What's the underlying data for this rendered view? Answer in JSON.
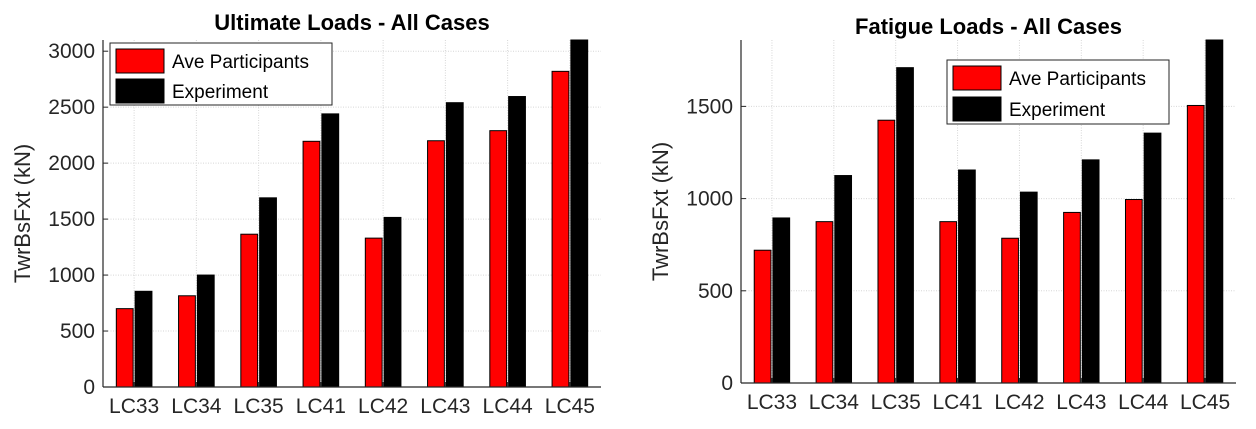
{
  "chart_data": [
    {
      "type": "bar",
      "title": "Ultimate Loads - All Cases",
      "xlabel": "",
      "ylabel": "TwrBsFxt (kN)",
      "categories": [
        "LC33",
        "LC34",
        "LC35",
        "LC41",
        "LC42",
        "LC43",
        "LC44",
        "LC45"
      ],
      "ylim": [
        0,
        3100
      ],
      "yticks": [
        0,
        500,
        1000,
        1500,
        2000,
        2500,
        3000
      ],
      "grid": true,
      "legend": "top-left",
      "series": [
        {
          "name": "Ave Participants",
          "color": "#ff0000",
          "values": [
            700,
            815,
            1365,
            2195,
            1330,
            2200,
            2290,
            2820
          ]
        },
        {
          "name": "Experiment",
          "color": "#000000",
          "values": [
            855,
            1000,
            1690,
            2440,
            1515,
            2540,
            2595,
            3100
          ]
        }
      ]
    },
    {
      "type": "bar",
      "title": "Fatigue Loads - All Cases",
      "xlabel": "",
      "ylabel": "TwrBsFxt (kN)",
      "categories": [
        "LC33",
        "LC34",
        "LC35",
        "LC41",
        "LC42",
        "LC43",
        "LC44",
        "LC45"
      ],
      "ylim": [
        0,
        1860
      ],
      "yticks": [
        0,
        500,
        1000,
        1500
      ],
      "grid": true,
      "legend": "top-right",
      "series": [
        {
          "name": "Ave Participants",
          "color": "#ff0000",
          "values": [
            720,
            875,
            1425,
            875,
            785,
            925,
            995,
            1505
          ]
        },
        {
          "name": "Experiment",
          "color": "#000000",
          "values": [
            895,
            1125,
            1710,
            1155,
            1035,
            1210,
            1355,
            1860
          ]
        }
      ]
    }
  ]
}
